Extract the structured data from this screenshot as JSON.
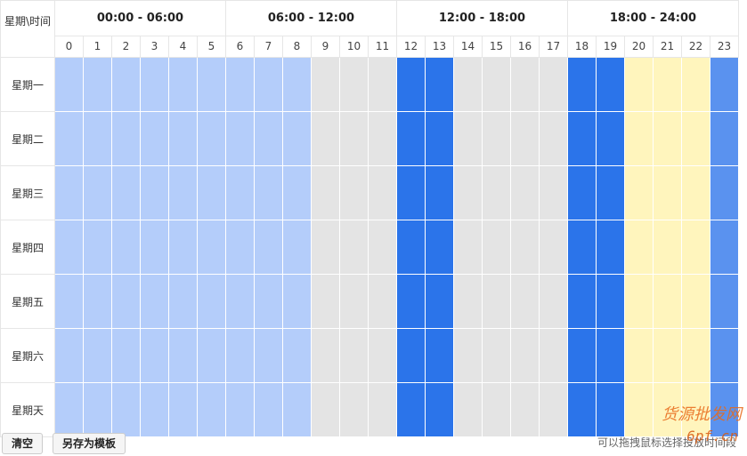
{
  "header": {
    "corner_label": "星期\\时间",
    "ranges": [
      "00:00 - 06:00",
      "06:00 - 12:00",
      "12:00 - 18:00",
      "18:00 - 24:00"
    ],
    "hours": [
      "0",
      "1",
      "2",
      "3",
      "4",
      "5",
      "6",
      "7",
      "8",
      "9",
      "10",
      "11",
      "12",
      "13",
      "14",
      "15",
      "16",
      "17",
      "18",
      "19",
      "20",
      "21",
      "22",
      "23"
    ]
  },
  "days": [
    "星期一",
    "星期二",
    "星期三",
    "星期四",
    "星期五",
    "星期六",
    "星期天"
  ],
  "colors": {
    "light_blue": "#b4cdfa",
    "gray": "#e4e4e4",
    "blue": "#2b74ea",
    "yellow": "#fff5bd",
    "mid_blue": "#5a92ef"
  },
  "hour_colors": [
    "light_blue",
    "light_blue",
    "light_blue",
    "light_blue",
    "light_blue",
    "light_blue",
    "light_blue",
    "light_blue",
    "light_blue",
    "gray",
    "gray",
    "gray",
    "blue",
    "blue",
    "gray",
    "gray",
    "gray",
    "gray",
    "blue",
    "blue",
    "yellow",
    "yellow",
    "yellow",
    "mid_blue"
  ],
  "buttons": {
    "clear": "清空",
    "save_template": "另存为模板"
  },
  "hint": "可以拖拽鼠标选择投放时间段",
  "watermark": {
    "line1": "货源批发网",
    "line2": "6pf.cn"
  }
}
